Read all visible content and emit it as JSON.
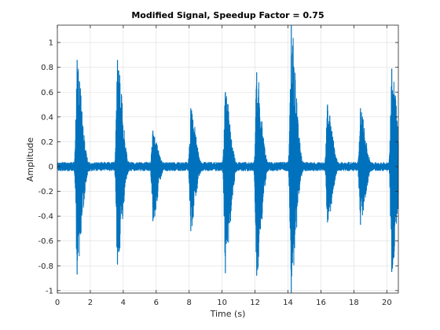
{
  "chart_data": {
    "type": "line",
    "title": "Modified Signal, Speedup Factor = 0.75",
    "xlabel": "Time (s)",
    "ylabel": "Amplitude",
    "xlim": [
      0,
      20.7
    ],
    "ylim": [
      -1.02,
      1.14
    ],
    "xticks": [
      0,
      2,
      4,
      6,
      8,
      10,
      12,
      14,
      16,
      18,
      20
    ],
    "xtick_labels": [
      "0",
      "2",
      "4",
      "6",
      "8",
      "10",
      "12",
      "14",
      "16",
      "18",
      "20"
    ],
    "yticks": [
      -1,
      -0.8,
      -0.6,
      -0.4,
      -0.2,
      0,
      0.2,
      0.4,
      0.6,
      0.8,
      1
    ],
    "ytick_labels": [
      "-1",
      "-0.8",
      "-0.6",
      "-0.4",
      "-0.2",
      "0",
      "0.2",
      "0.4",
      "0.6",
      "0.8",
      "1"
    ],
    "grid": true,
    "line_color": "#0072BD",
    "noise_floor": 0.025,
    "bursts": [
      {
        "t": 1.2,
        "pos": 0.86,
        "neg": -0.87
      },
      {
        "t": 3.65,
        "pos": 0.86,
        "neg": -0.79
      },
      {
        "t": 5.8,
        "pos": 0.29,
        "neg": -0.44
      },
      {
        "t": 8.1,
        "pos": 0.47,
        "neg": -0.52
      },
      {
        "t": 10.2,
        "pos": 0.6,
        "neg": -0.86
      },
      {
        "t": 12.1,
        "pos": 0.76,
        "neg": -0.88
      },
      {
        "t": 14.2,
        "pos": 1.14,
        "neg": -1.02
      },
      {
        "t": 16.4,
        "pos": 0.5,
        "neg": -0.45
      },
      {
        "t": 18.4,
        "pos": 0.47,
        "neg": -0.47
      },
      {
        "t": 20.3,
        "pos": 0.79,
        "neg": -0.85
      }
    ]
  }
}
